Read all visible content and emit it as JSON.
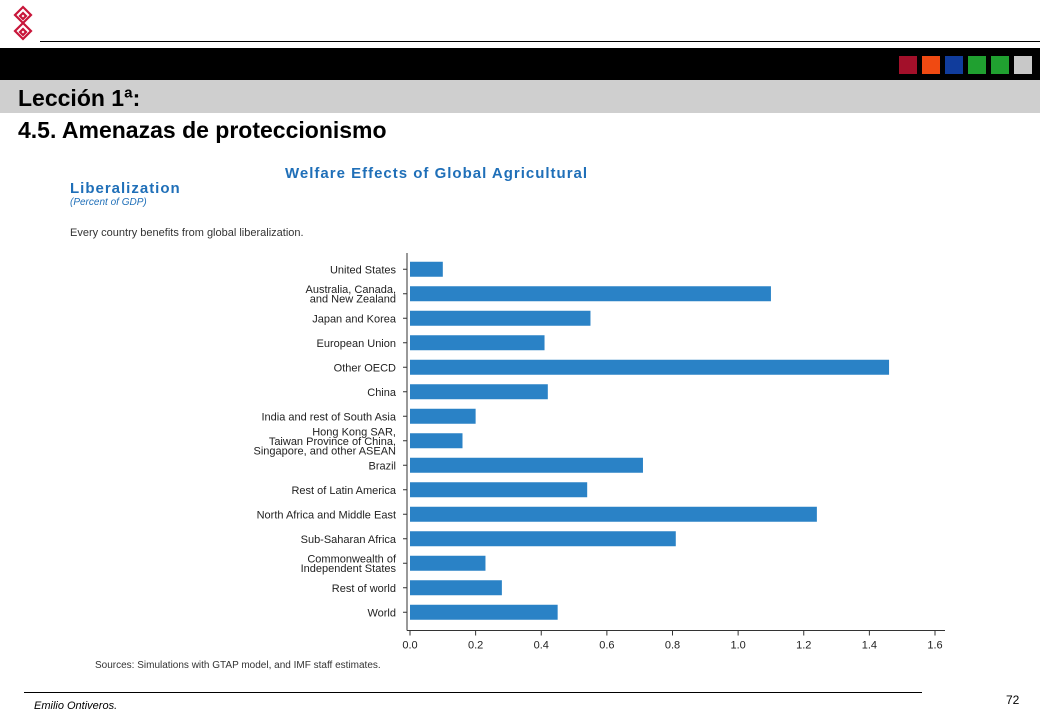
{
  "slide": {
    "title_line1": "Lección 1ª:",
    "title_line2": "4.5. Amenazas de proteccionismo",
    "footer_author": "Emilio Ontiveros.",
    "page_number": "72",
    "header_square_colors": [
      "#a3102a",
      "#f04a12",
      "#103c9c",
      "#20a030",
      "#20a030",
      "#c8c8c8"
    ]
  },
  "chart_data": {
    "type": "bar",
    "orientation": "horizontal",
    "title": "Welfare Effects of Global Agricultural Liberalization",
    "title_line1": "Welfare Effects of Global Agricultural",
    "title_line2": "Liberalization",
    "subtitle": "(Percent of GDP)",
    "note": "Every country benefits from global liberalization.",
    "source": "Sources: Simulations with GTAP model, and IMF staff estimates.",
    "bar_color": "#2a82c6",
    "categories": [
      "United States",
      "Australia, Canada, and New Zealand",
      "Japan and Korea",
      "European Union",
      "Other OECD",
      "China",
      "India and rest of South Asia",
      "Hong Kong SAR, Taiwan Province of China, Singapore, and other ASEAN",
      "Brazil",
      "Rest of Latin America",
      "North Africa and Middle East",
      "Sub-Saharan Africa",
      "Commonwealth of Independent States",
      "Rest of world",
      "World"
    ],
    "category_lines": [
      [
        "United States"
      ],
      [
        "Australia, Canada,",
        "and New Zealand"
      ],
      [
        "Japan and Korea"
      ],
      [
        "European Union"
      ],
      [
        "Other OECD"
      ],
      [
        "China"
      ],
      [
        "India and rest of South Asia"
      ],
      [
        "Hong Kong SAR,",
        "Taiwan Province of China,",
        "Singapore, and other ASEAN"
      ],
      [
        "Brazil"
      ],
      [
        "Rest of Latin America"
      ],
      [
        "North Africa and Middle East"
      ],
      [
        "Sub-Saharan Africa"
      ],
      [
        "Commonwealth of",
        "Independent States"
      ],
      [
        "Rest of world"
      ],
      [
        "World"
      ]
    ],
    "values": [
      0.1,
      1.1,
      0.55,
      0.41,
      1.46,
      0.42,
      0.2,
      0.16,
      0.71,
      0.54,
      1.24,
      0.81,
      0.23,
      0.28,
      0.45
    ],
    "xlim": [
      0.0,
      1.6
    ],
    "xticks": [
      "0.0",
      "0.2",
      "0.4",
      "0.6",
      "0.8",
      "1.0",
      "1.2",
      "1.4",
      "1.6"
    ],
    "xlabel": "",
    "ylabel": ""
  }
}
